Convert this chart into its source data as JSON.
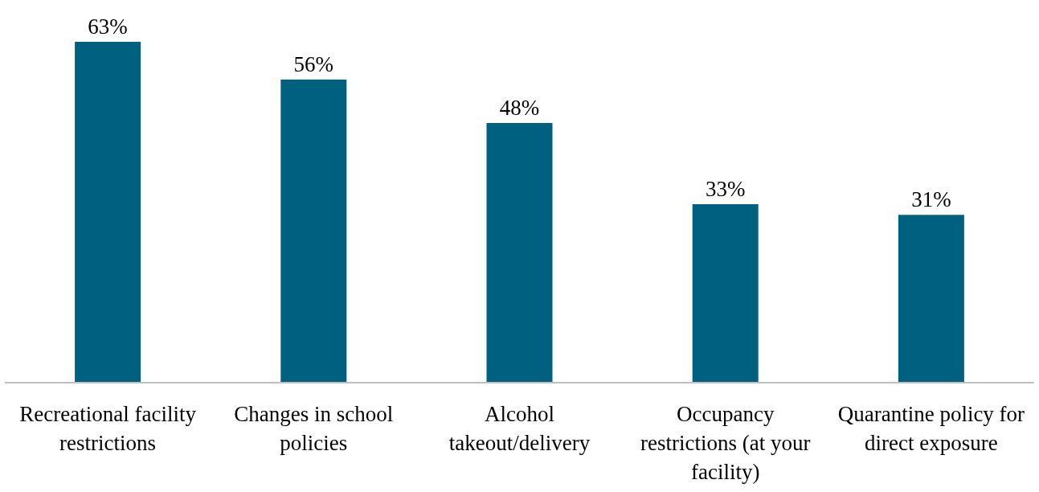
{
  "chart_data": {
    "type": "bar",
    "categories": [
      "Recreational facility restrictions",
      "Changes in school policies",
      "Alcohol takeout/delivery",
      "Occupancy restrictions (at your facility)",
      "Quarantine policy for direct exposure"
    ],
    "values": [
      63,
      56,
      48,
      33,
      31
    ],
    "value_labels": [
      "63%",
      "56%",
      "48%",
      "33%",
      "31%"
    ],
    "color": "#00607f",
    "grid": false,
    "legend": false
  }
}
